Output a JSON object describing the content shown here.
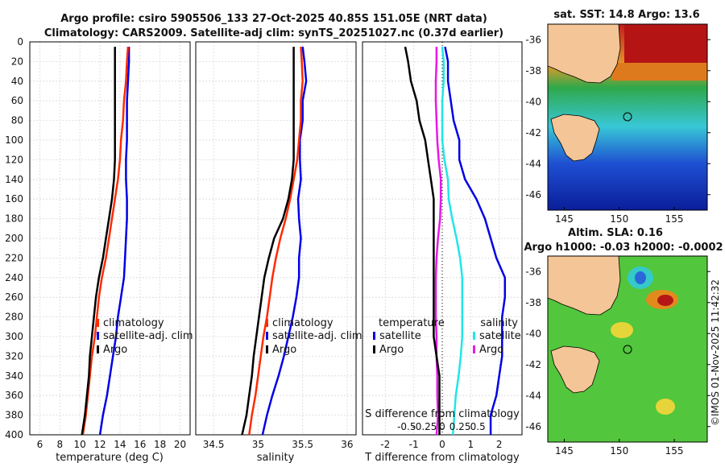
{
  "header": {
    "title_line1": "Argo profile: csiro 5905506_133 27-Oct-2025 40.85S 151.05E (NRT data)",
    "title_line2": "Climatology: CARS2009. Satellite-adj clim: synTS_20251027.nc (0.37d earlier)"
  },
  "colors": {
    "climatology": "#ff2a00",
    "satellite": "#0000e6",
    "argo": "#000000",
    "s_satellite": "#20e6e6",
    "s_argo": "#e619e6"
  },
  "chart_data": [
    {
      "id": "temperature",
      "type": "line",
      "xlabel": "temperature (deg C)",
      "ylabel": "depth",
      "xlim": [
        5,
        21
      ],
      "ylim": [
        0,
        400
      ],
      "xticks": [
        "6",
        "8",
        "10",
        "12",
        "14",
        "16",
        "18",
        "20"
      ],
      "xtick_values": [
        6,
        8,
        10,
        12,
        14,
        16,
        18,
        20
      ],
      "yticks": [
        "0",
        "20",
        "40",
        "60",
        "80",
        "100",
        "120",
        "140",
        "160",
        "180",
        "200",
        "220",
        "240",
        "260",
        "280",
        "300",
        "320",
        "340",
        "360",
        "380",
        "400"
      ],
      "series": [
        {
          "name": "climatology",
          "depth": [
            5,
            20,
            40,
            60,
            80,
            100,
            120,
            140,
            160,
            180,
            200,
            220,
            240,
            260,
            280,
            300,
            320,
            340,
            360,
            380,
            400
          ],
          "values": [
            14.8,
            14.7,
            14.6,
            14.4,
            14.3,
            14.1,
            14.0,
            13.8,
            13.5,
            13.2,
            12.9,
            12.6,
            12.2,
            11.9,
            11.7,
            11.5,
            11.2,
            11.0,
            10.8,
            10.6,
            10.3
          ]
        },
        {
          "name": "satellite-adj. clim",
          "depth": [
            5,
            20,
            40,
            60,
            80,
            100,
            120,
            140,
            160,
            180,
            200,
            220,
            240,
            260,
            280,
            300,
            320,
            340,
            360,
            380,
            400
          ],
          "values": [
            14.9,
            14.9,
            14.8,
            14.7,
            14.7,
            14.7,
            14.6,
            14.6,
            14.7,
            14.7,
            14.6,
            14.5,
            14.4,
            14.1,
            13.8,
            13.6,
            13.3,
            13.0,
            12.7,
            12.3,
            12.0
          ]
        },
        {
          "name": "Argo",
          "depth": [
            5,
            20,
            40,
            60,
            80,
            100,
            120,
            140,
            160,
            180,
            200,
            220,
            240,
            260,
            280,
            300,
            320,
            340,
            360,
            380,
            400
          ],
          "values": [
            13.5,
            13.5,
            13.5,
            13.5,
            13.5,
            13.5,
            13.5,
            13.4,
            13.2,
            12.9,
            12.6,
            12.3,
            11.9,
            11.6,
            11.4,
            11.2,
            11.0,
            10.9,
            10.7,
            10.5,
            10.2
          ]
        }
      ],
      "legend": [
        "climatology",
        "satellite-adj. clim",
        "Argo"
      ]
    },
    {
      "id": "salinity",
      "type": "line",
      "xlabel": "salinity",
      "ylabel": "depth",
      "xlim": [
        34.3,
        36.1
      ],
      "ylim": [
        0,
        400
      ],
      "xticks": [
        "34.5",
        "35",
        "35.5",
        "36"
      ],
      "xtick_values": [
        34.5,
        35,
        35.5,
        36
      ],
      "series": [
        {
          "name": "climatology",
          "depth": [
            5,
            20,
            40,
            60,
            80,
            100,
            120,
            140,
            160,
            180,
            200,
            220,
            240,
            260,
            280,
            300,
            320,
            340,
            360,
            380,
            400
          ],
          "values": [
            35.48,
            35.49,
            35.5,
            35.48,
            35.48,
            35.46,
            35.44,
            35.4,
            35.36,
            35.31,
            35.25,
            35.2,
            35.16,
            35.13,
            35.1,
            35.06,
            35.03,
            35.0,
            34.97,
            34.93,
            34.9
          ]
        },
        {
          "name": "satellite-adj. clim",
          "depth": [
            5,
            20,
            40,
            60,
            80,
            100,
            120,
            140,
            160,
            180,
            200,
            220,
            240,
            260,
            280,
            300,
            320,
            340,
            360,
            380,
            400
          ],
          "values": [
            35.5,
            35.52,
            35.54,
            35.5,
            35.5,
            35.47,
            35.47,
            35.48,
            35.45,
            35.46,
            35.48,
            35.46,
            35.46,
            35.43,
            35.39,
            35.34,
            35.29,
            35.23,
            35.16,
            35.1,
            35.05
          ]
        },
        {
          "name": "Argo",
          "depth": [
            5,
            20,
            40,
            60,
            80,
            100,
            120,
            140,
            160,
            180,
            200,
            220,
            240,
            260,
            280,
            300,
            320,
            340,
            360,
            380,
            400
          ],
          "values": [
            35.4,
            35.4,
            35.4,
            35.4,
            35.4,
            35.4,
            35.4,
            35.38,
            35.34,
            35.28,
            35.18,
            35.12,
            35.07,
            35.04,
            35.01,
            34.98,
            34.95,
            34.93,
            34.9,
            34.87,
            34.82
          ]
        }
      ],
      "legend": [
        "climatology",
        "satellite-adj. clim",
        "Argo"
      ]
    },
    {
      "id": "difference",
      "type": "line",
      "xlabel": "T difference from climatology",
      "top_label": "S difference from climatology",
      "xlim": [
        -2.8,
        2.8
      ],
      "ylim": [
        0,
        400
      ],
      "xticks": [
        "-2",
        "-1",
        "0",
        "1",
        "2"
      ],
      "xtick_values": [
        -2,
        -1,
        0,
        1,
        2
      ],
      "s_ticks": [
        "-0.5",
        "-0.25",
        "0",
        "0.25",
        "0.5"
      ],
      "s_tick_values": [
        -0.5,
        -0.25,
        0,
        0.25,
        0.5
      ],
      "series": [
        {
          "name": "T satellite",
          "depth": [
            5,
            20,
            40,
            60,
            80,
            100,
            120,
            140,
            160,
            180,
            200,
            220,
            240,
            260,
            280,
            300,
            320,
            340,
            360,
            380,
            400
          ],
          "values": [
            0.1,
            0.2,
            0.2,
            0.3,
            0.4,
            0.6,
            0.6,
            0.8,
            1.2,
            1.5,
            1.7,
            1.9,
            2.2,
            2.2,
            2.1,
            2.1,
            2.1,
            2.0,
            1.9,
            1.7,
            1.7
          ]
        },
        {
          "name": "T Argo",
          "depth": [
            5,
            20,
            40,
            60,
            80,
            100,
            120,
            140,
            160,
            180,
            200,
            220,
            240,
            260,
            280,
            300,
            320,
            340,
            360,
            380,
            400
          ],
          "values": [
            -1.3,
            -1.2,
            -1.1,
            -0.9,
            -0.8,
            -0.6,
            -0.5,
            -0.4,
            -0.3,
            -0.3,
            -0.3,
            -0.3,
            -0.3,
            -0.3,
            -0.3,
            -0.3,
            -0.2,
            -0.1,
            -0.1,
            -0.1,
            -0.1
          ]
        },
        {
          "name": "S satellite",
          "depth": [
            5,
            20,
            40,
            60,
            80,
            100,
            120,
            140,
            160,
            180,
            200,
            220,
            240,
            260,
            280,
            300,
            320,
            340,
            360,
            380,
            400
          ],
          "values": [
            0.0,
            0.02,
            0.02,
            0.0,
            0.0,
            0.0,
            0.03,
            0.08,
            0.09,
            0.14,
            0.2,
            0.25,
            0.28,
            0.28,
            0.28,
            0.28,
            0.26,
            0.23,
            0.19,
            0.17,
            0.15
          ]
        },
        {
          "name": "S Argo",
          "depth": [
            5,
            20,
            40,
            60,
            80,
            100,
            120,
            140,
            160,
            180,
            200,
            220,
            240,
            260,
            280,
            300,
            320,
            340,
            360,
            380,
            400
          ],
          "values": [
            -0.08,
            -0.08,
            -0.09,
            -0.09,
            -0.08,
            -0.07,
            -0.05,
            -0.02,
            -0.02,
            -0.03,
            -0.06,
            -0.08,
            -0.09,
            -0.09,
            -0.09,
            -0.08,
            -0.08,
            -0.07,
            -0.07,
            -0.06,
            -0.08
          ]
        }
      ],
      "legend_left_title": "temperature",
      "legend_right_title": "salinity",
      "legend_left": [
        "satellite",
        "Argo"
      ],
      "legend_right": [
        "satellite",
        "Argo"
      ]
    }
  ],
  "maps": {
    "sst": {
      "title": "sat. SST: 14.8 Argo: 13.6"
    },
    "sla": {
      "title_line1": "Altim. SLA: 0.16",
      "title_line2": "Argo h1000: -0.03 h2000: -0.0002"
    },
    "lat_ticks": [
      "-36",
      "-38",
      "-40",
      "-42",
      "-44",
      "-46"
    ],
    "lon_ticks": [
      "145",
      "150",
      "155"
    ],
    "argo_position": {
      "lon": 151.05,
      "lat": -40.85
    }
  },
  "footer": {
    "watermark": "©IMOS 01-Nov-2025 11:42:32"
  }
}
